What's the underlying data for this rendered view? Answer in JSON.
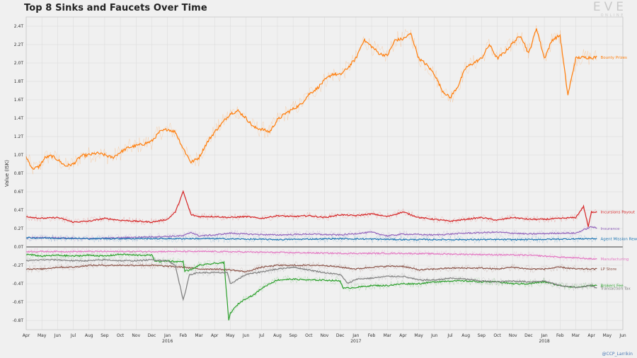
{
  "chart_data": {
    "type": "line",
    "title": "Top 8 Sinks and Faucets Over Time",
    "ylabel": "Value (ISK)",
    "xlabel": "",
    "ylim": [
      -0.85,
      2.5
    ],
    "yticks": [
      2.4,
      2.2,
      2.0,
      1.8,
      1.6,
      1.4,
      1.2,
      1.0,
      0.8,
      0.6,
      0.4,
      0.2,
      0.0,
      -0.2,
      -0.4,
      -0.6,
      -0.8
    ],
    "ytick_labels": [
      "2.4T",
      "2.2T",
      "2.0T",
      "1.8T",
      "1.6T",
      "1.4T",
      "1.2T",
      "1.0T",
      "0.8T",
      "0.6T",
      "0.4T",
      "0.2T",
      "0.0T",
      "-0.2T",
      "-0.4T",
      "-0.6T",
      "-0.8T"
    ],
    "x_unit": "months since 2015-04-01",
    "xlim": [
      0,
      38
    ],
    "xticks": [
      0,
      1,
      2,
      3,
      4,
      5,
      6,
      7,
      8,
      9,
      10,
      11,
      12,
      13,
      14,
      15,
      16,
      17,
      18,
      19,
      20,
      21,
      22,
      23,
      24,
      25,
      26,
      27,
      28,
      29,
      30,
      31,
      32,
      33,
      34,
      35,
      36,
      37,
      38
    ],
    "xtick_labels": [
      "Apr",
      "May",
      "Jun",
      "Jul",
      "Aug",
      "Sep",
      "Oct",
      "Nov",
      "Dec",
      "Jan",
      "Feb",
      "Mar",
      "Apr",
      "May",
      "Jun",
      "Jul",
      "Aug",
      "Sep",
      "Oct",
      "Nov",
      "Dec",
      "Jan",
      "Feb",
      "Mar",
      "Apr",
      "May",
      "Jun",
      "Jul",
      "Aug",
      "Sep",
      "Oct",
      "Nov",
      "Dec",
      "Jan",
      "Feb",
      "Mar",
      "Apr",
      "May",
      "Jun"
    ],
    "year_labels": [
      {
        "x": 9,
        "label": "2016"
      },
      {
        "x": 21,
        "label": "2017"
      },
      {
        "x": 33,
        "label": "2018"
      }
    ],
    "grid": true,
    "legend": "inline labels at right end of each series",
    "series": [
      {
        "name": "Bounty Prizes",
        "color": "#ff7f0e",
        "x": [
          0,
          0.4,
          0.8,
          1.2,
          1.6,
          2,
          2.5,
          3,
          3.5,
          4,
          4.5,
          5,
          5.5,
          6,
          6.5,
          7,
          7.5,
          8,
          8.5,
          9,
          9.5,
          10,
          10.5,
          11,
          11.4,
          11.7,
          12,
          12.5,
          13,
          13.5,
          14,
          14.5,
          15,
          15.5,
          16,
          16.5,
          17,
          17.5,
          18,
          18.5,
          19,
          19.5,
          20,
          20.5,
          21,
          21.5,
          22,
          22.5,
          23,
          23.5,
          24,
          24.5,
          25,
          25.5,
          26,
          26.5,
          27,
          27.5,
          28,
          28.5,
          29,
          29.5,
          30,
          30.5,
          31,
          31.5,
          32,
          32.5,
          33,
          33.5,
          34,
          34.5,
          35,
          35.3,
          35.6,
          36,
          36.4
        ],
        "values": [
          0.98,
          0.85,
          0.87,
          0.97,
          0.99,
          0.95,
          0.88,
          0.9,
          0.99,
          1.0,
          1.02,
          1.0,
          0.97,
          1.03,
          1.08,
          1.1,
          1.12,
          1.15,
          1.25,
          1.28,
          1.25,
          1.07,
          0.92,
          0.97,
          1.1,
          1.18,
          1.25,
          1.35,
          1.45,
          1.48,
          1.4,
          1.3,
          1.28,
          1.25,
          1.38,
          1.45,
          1.5,
          1.55,
          1.66,
          1.72,
          1.81,
          1.88,
          1.87,
          1.95,
          2.05,
          2.25,
          2.18,
          2.1,
          2.08,
          2.25,
          2.26,
          2.32,
          2.05,
          1.98,
          1.88,
          1.7,
          1.62,
          1.75,
          1.95,
          2.0,
          2.05,
          2.2,
          2.05,
          2.12,
          2.22,
          2.3,
          2.1,
          2.38,
          2.05,
          2.25,
          2.3,
          1.65,
          2.05,
          2.06,
          2.06,
          2.06,
          2.06
        ]
      },
      {
        "name": "Incursions Payout",
        "color": "#d62728",
        "x": [
          0,
          1,
          2,
          3,
          4,
          5,
          6,
          7,
          8,
          9,
          9.5,
          10,
          10.5,
          11,
          12,
          13,
          14,
          15,
          16,
          17,
          18,
          19,
          20,
          21,
          22,
          23,
          24,
          25,
          26,
          27,
          28,
          29,
          30,
          31,
          32,
          33,
          34,
          35,
          35.5,
          35.8,
          36,
          36.4
        ],
        "values": [
          0.33,
          0.31,
          0.32,
          0.27,
          0.28,
          0.31,
          0.29,
          0.28,
          0.27,
          0.3,
          0.38,
          0.6,
          0.35,
          0.33,
          0.33,
          0.32,
          0.33,
          0.31,
          0.34,
          0.33,
          0.34,
          0.32,
          0.35,
          0.34,
          0.36,
          0.33,
          0.38,
          0.32,
          0.3,
          0.28,
          0.3,
          0.32,
          0.29,
          0.32,
          0.3,
          0.3,
          0.31,
          0.32,
          0.44,
          0.22,
          0.38,
          0.38
        ]
      },
      {
        "name": "Insurance",
        "color": "#9467bd",
        "x": [
          0,
          2,
          4,
          6,
          8,
          10,
          10.5,
          11,
          12,
          13,
          14,
          16,
          18,
          20,
          22,
          23,
          24,
          26,
          28,
          30,
          32,
          34,
          35,
          36,
          36.4
        ],
        "values": [
          0.1,
          0.1,
          0.09,
          0.1,
          0.11,
          0.12,
          0.16,
          0.12,
          0.13,
          0.15,
          0.14,
          0.13,
          0.14,
          0.13,
          0.16,
          0.12,
          0.14,
          0.13,
          0.15,
          0.16,
          0.14,
          0.15,
          0.15,
          0.22,
          0.2
        ]
      },
      {
        "name": "Agent Mission Rewards",
        "color": "#1f77b4",
        "x": [
          0,
          4,
          8,
          12,
          16,
          20,
          24,
          28,
          32,
          36,
          36.4
        ],
        "values": [
          0.1,
          0.09,
          0.09,
          0.09,
          0.08,
          0.09,
          0.08,
          0.08,
          0.08,
          0.09,
          0.09
        ]
      },
      {
        "name": "Manufacturing",
        "color": "#e377c2",
        "x": [
          0,
          4,
          8,
          12,
          16,
          20,
          24,
          28,
          32,
          36,
          36.4
        ],
        "values": [
          -0.05,
          -0.05,
          -0.05,
          -0.05,
          -0.06,
          -0.07,
          -0.07,
          -0.08,
          -0.09,
          -0.13,
          -0.13
        ]
      },
      {
        "name": "LP Store",
        "color": "#8c564b",
        "x": [
          0,
          1,
          2,
          3,
          4,
          6,
          8,
          9,
          10,
          11,
          12,
          13,
          14,
          15,
          16,
          17,
          18,
          19,
          20,
          21,
          22,
          23,
          24,
          25,
          26,
          27,
          28,
          29,
          30,
          31,
          32,
          33,
          34,
          35,
          36,
          36.4
        ],
        "values": [
          -0.24,
          -0.24,
          -0.22,
          -0.22,
          -0.2,
          -0.2,
          -0.2,
          -0.21,
          -0.22,
          -0.24,
          -0.24,
          -0.25,
          -0.27,
          -0.22,
          -0.2,
          -0.2,
          -0.2,
          -0.2,
          -0.22,
          -0.24,
          -0.22,
          -0.21,
          -0.21,
          -0.25,
          -0.24,
          -0.23,
          -0.23,
          -0.23,
          -0.24,
          -0.22,
          -0.24,
          -0.24,
          -0.22,
          -0.24,
          -0.24,
          -0.24
        ]
      },
      {
        "name": "Brokers Fee",
        "color": "#2ca02c",
        "x": [
          0,
          1,
          2,
          3,
          4,
          5,
          6,
          7,
          8,
          8.2,
          8.6,
          9,
          9.5,
          10,
          10.1,
          10.5,
          11,
          12,
          12.6,
          12.9,
          13,
          13.5,
          14,
          14.5,
          15,
          15.5,
          16,
          17,
          18,
          19,
          20,
          20.2,
          21,
          22,
          23,
          24,
          25,
          26,
          27,
          28,
          29,
          30,
          31,
          32,
          33,
          34,
          35,
          36,
          36.4
        ],
        "values": [
          -0.08,
          -0.1,
          -0.09,
          -0.1,
          -0.09,
          -0.1,
          -0.08,
          -0.09,
          -0.09,
          -0.15,
          -0.16,
          -0.15,
          -0.16,
          -0.16,
          -0.26,
          -0.25,
          -0.2,
          -0.18,
          -0.17,
          -0.8,
          -0.72,
          -0.62,
          -0.56,
          -0.52,
          -0.45,
          -0.4,
          -0.36,
          -0.35,
          -0.36,
          -0.36,
          -0.37,
          -0.45,
          -0.44,
          -0.42,
          -0.42,
          -0.4,
          -0.4,
          -0.38,
          -0.37,
          -0.37,
          -0.38,
          -0.38,
          -0.4,
          -0.4,
          -0.38,
          -0.42,
          -0.44,
          -0.42,
          -0.42
        ]
      },
      {
        "name": "Transaction Tax",
        "color": "#7f7f7f",
        "x": [
          0,
          1,
          2,
          3,
          4,
          5,
          6,
          7,
          8,
          9,
          9.5,
          10,
          10.4,
          11,
          12,
          12.8,
          13,
          13.5,
          14,
          15,
          16,
          17,
          18,
          19,
          20,
          20.5,
          21,
          22,
          23,
          24,
          25,
          26,
          27,
          28,
          29,
          30,
          31,
          32,
          33,
          34,
          35,
          36,
          36.4
        ],
        "values": [
          -0.15,
          -0.14,
          -0.14,
          -0.15,
          -0.15,
          -0.14,
          -0.15,
          -0.15,
          -0.14,
          -0.15,
          -0.2,
          -0.58,
          -0.3,
          -0.28,
          -0.28,
          -0.28,
          -0.4,
          -0.35,
          -0.3,
          -0.27,
          -0.24,
          -0.22,
          -0.25,
          -0.28,
          -0.3,
          -0.4,
          -0.35,
          -0.34,
          -0.32,
          -0.32,
          -0.36,
          -0.36,
          -0.34,
          -0.35,
          -0.37,
          -0.38,
          -0.37,
          -0.38,
          -0.37,
          -0.42,
          -0.44,
          -0.42,
          -0.45
        ]
      }
    ]
  },
  "branding": {
    "logo_text": "EVE",
    "logo_sub": "ONLINE"
  },
  "credit": "@CCP_Larrikin"
}
